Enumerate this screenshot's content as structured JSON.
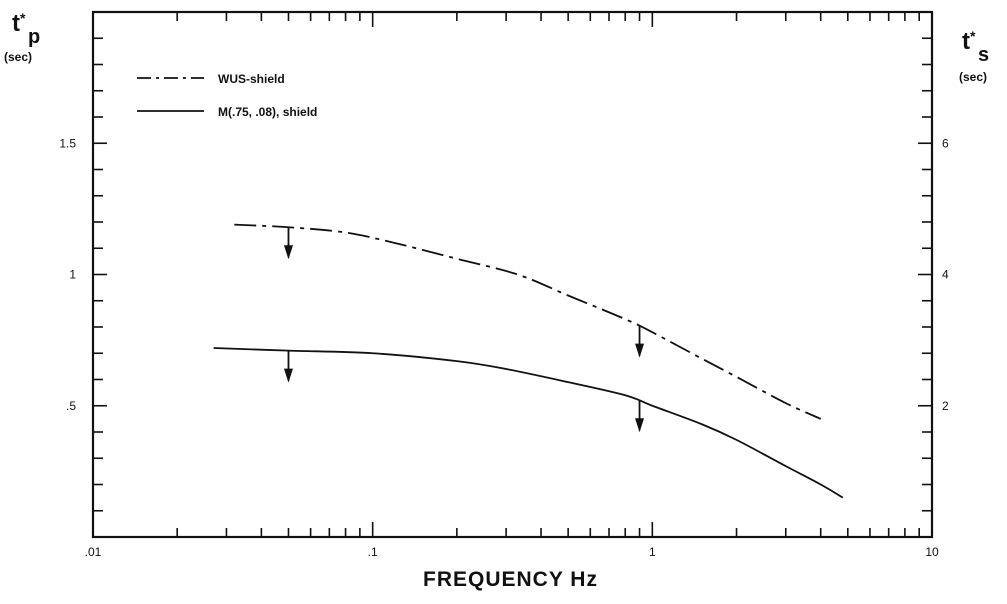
{
  "chart_data": {
    "type": "line",
    "x_scale": "log",
    "xlim": [
      0.01,
      10
    ],
    "ylim_left": [
      0,
      2
    ],
    "ylim_right": [
      0,
      8
    ],
    "x_ticks": [
      {
        "v": 0.01,
        "label": ".01"
      },
      {
        "v": 0.1,
        "label": ".1"
      },
      {
        "v": 1,
        "label": "1"
      },
      {
        "v": 10,
        "label": "10"
      }
    ],
    "y_left_ticks": [
      {
        "v": 0.5,
        "label": ".5"
      },
      {
        "v": 1,
        "label": "1"
      },
      {
        "v": 1.5,
        "label": "1.5"
      }
    ],
    "y_right_ticks": [
      {
        "v": 2,
        "label": "2"
      },
      {
        "v": 4,
        "label": "4"
      },
      {
        "v": 6,
        "label": "6"
      }
    ],
    "xlabel": "FREQUENCY Hz",
    "ylabel_left": {
      "main": "t",
      "star": "*",
      "sub": "p",
      "unit": "(sec)"
    },
    "ylabel_right": {
      "main": "t",
      "star": "*",
      "sub": "s",
      "unit": "(sec)"
    },
    "legend_position": "top-left",
    "series": [
      {
        "name": "WUS-shield",
        "style": "dashdot",
        "points": [
          [
            0.032,
            1.19
          ],
          [
            0.05,
            1.18
          ],
          [
            0.08,
            1.16
          ],
          [
            0.12,
            1.12
          ],
          [
            0.2,
            1.06
          ],
          [
            0.33,
            1.0
          ],
          [
            0.5,
            0.92
          ],
          [
            0.8,
            0.83
          ],
          [
            1.0,
            0.78
          ],
          [
            1.5,
            0.68
          ],
          [
            2.0,
            0.61
          ],
          [
            3.0,
            0.51
          ],
          [
            4.0,
            0.45
          ]
        ],
        "arrows": [
          0.05,
          0.9
        ]
      },
      {
        "name": "M(.75, .08), shield",
        "style": "solid",
        "points": [
          [
            0.027,
            0.72
          ],
          [
            0.05,
            0.71
          ],
          [
            0.1,
            0.7
          ],
          [
            0.2,
            0.67
          ],
          [
            0.3,
            0.64
          ],
          [
            0.5,
            0.59
          ],
          [
            0.8,
            0.54
          ],
          [
            1.0,
            0.5
          ],
          [
            1.5,
            0.43
          ],
          [
            2.0,
            0.37
          ],
          [
            3.0,
            0.27
          ],
          [
            4.0,
            0.2
          ],
          [
            4.8,
            0.15
          ]
        ],
        "arrows": [
          0.05,
          0.9
        ]
      }
    ]
  }
}
